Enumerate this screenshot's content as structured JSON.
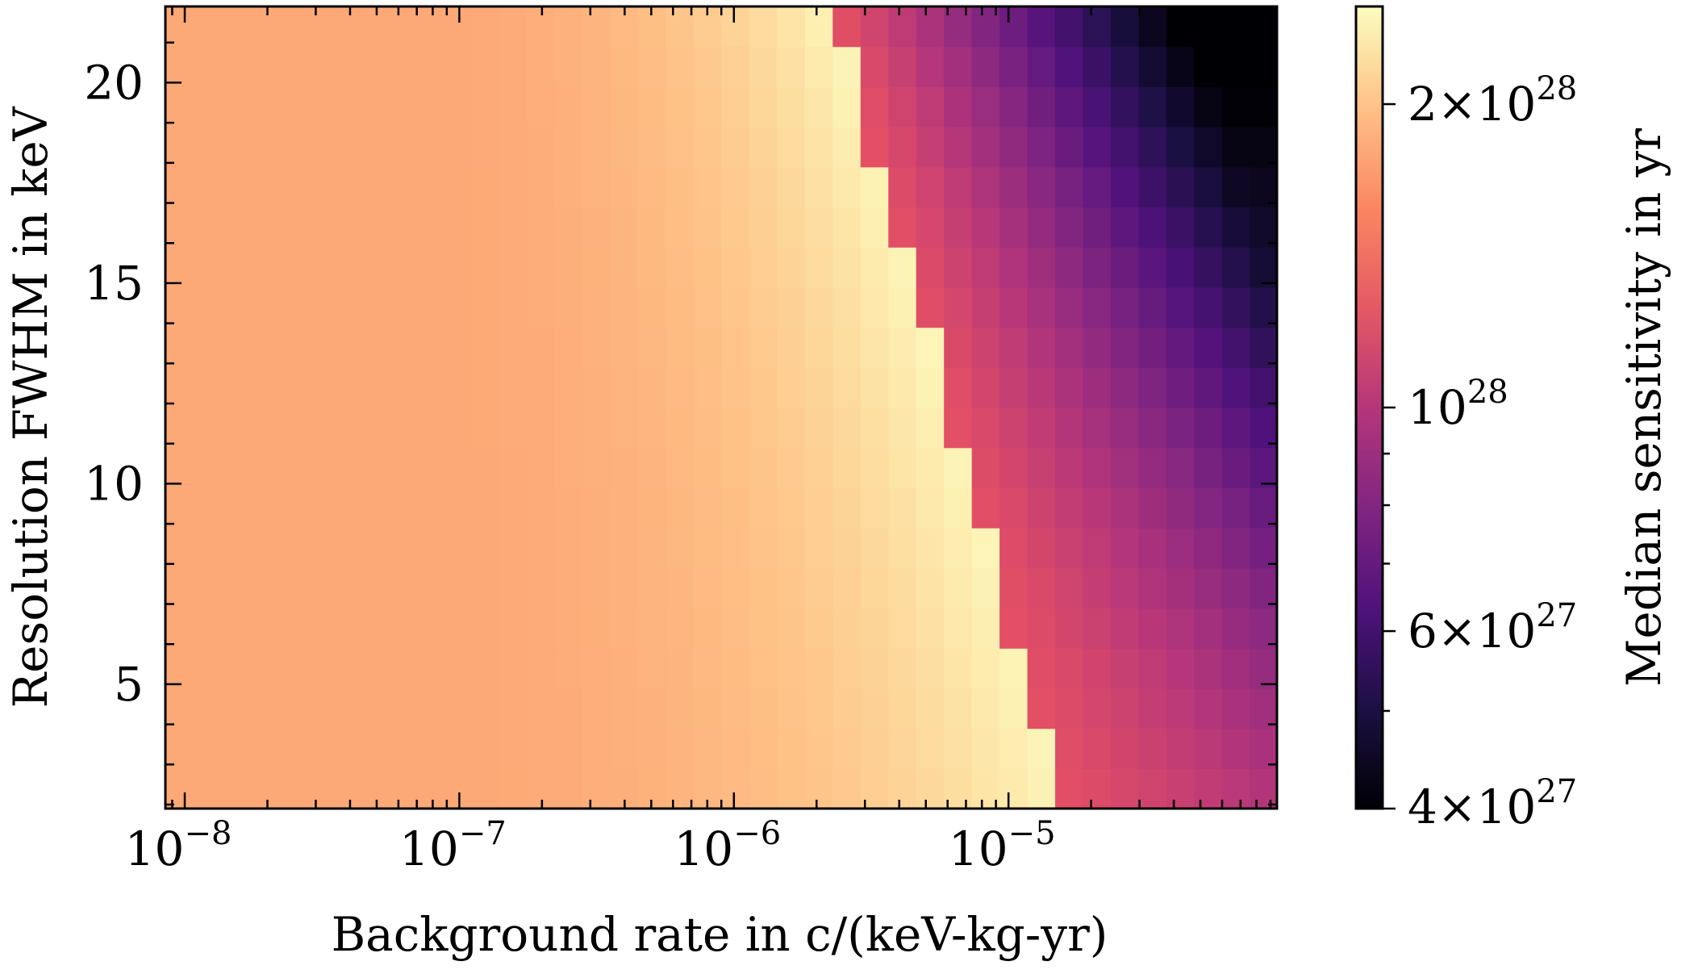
{
  "chart_data": {
    "type": "heatmap",
    "xlabel": "Background rate in c/(keV-kg-yr)",
    "ylabel": "Resolution FWHM in keV",
    "x_scale": "log",
    "xlim": [
      8.5e-09,
      9.5e-05
    ],
    "ylim": [
      1.9,
      21.9
    ],
    "x_ticks": [
      {
        "value": 1e-08,
        "base": "10",
        "exp": "−8"
      },
      {
        "value": 1e-07,
        "base": "10",
        "exp": "−7"
      },
      {
        "value": 1e-06,
        "base": "10",
        "exp": "−6"
      },
      {
        "value": 1e-05,
        "base": "10",
        "exp": "−5"
      }
    ],
    "y_ticks": [
      {
        "value": 5,
        "label": "5"
      },
      {
        "value": 10,
        "label": "10"
      },
      {
        "value": 15,
        "label": "15"
      },
      {
        "value": 20,
        "label": "20"
      }
    ],
    "colorbar": {
      "label": "Median sensitivity in yr",
      "scale": "log",
      "colormap": "magma",
      "range": [
        4e+27,
        2.5e+28
      ],
      "ticks": [
        {
          "value": 4e+27,
          "mant": "4×10",
          "exp": "27"
        },
        {
          "value": 6e+27,
          "mant": "6×10",
          "exp": "27"
        },
        {
          "value": 1e+28,
          "mant": "10",
          "exp": "28"
        },
        {
          "value": 2e+28,
          "mant": "2×10",
          "exp": "28"
        }
      ]
    },
    "grid": {
      "x_log_range": [
        -8.07,
        -4.02
      ],
      "y_range": [
        1.9,
        21.9
      ],
      "n_cols": 40,
      "n_rows": 20
    },
    "cell_value_rule": "Cells at low background rates have ~1.8e28 yr; sensitivity rises to ~2.4e28 yr near a resolution-dependent boundary (~1.6e-5 at 2 keV to ~2.5e-6 at 21 keV) and drops sharply beyond it to ~1.2e28 yr, falling to ~4e27 yr at the highest rates and resolutions."
  }
}
